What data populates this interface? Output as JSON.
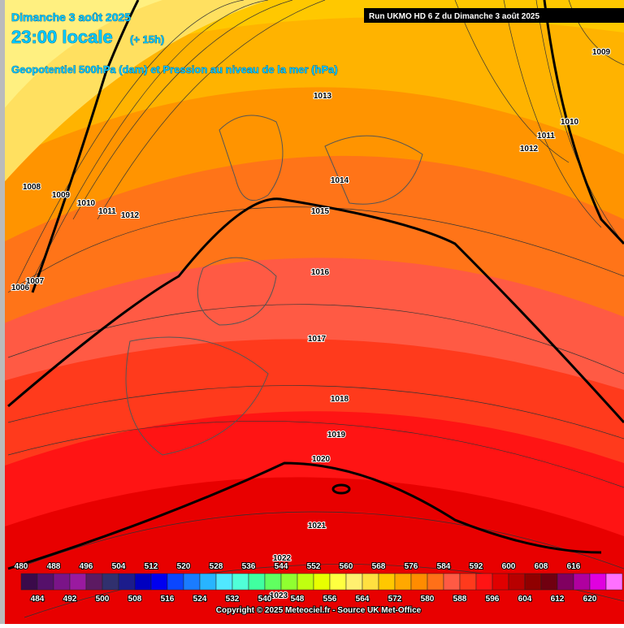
{
  "header": {
    "date": "Dimanche 3 août 2025",
    "time": "23:00 locale",
    "lead": "(+ 15h)",
    "title": "Geopotentiel 500hPa (dam) et Pression au niveau de la mer (hPa)",
    "run": "Run UKMO HD 6 Z du Dimanche 3 août 2025"
  },
  "isobar_labels": [
    "1009",
    "1013",
    "1010",
    "1011",
    "1012",
    "1014",
    "1008",
    "1009",
    "1010",
    "1011",
    "1012",
    "1015",
    "1007",
    "1006",
    "1016",
    "1017",
    "1018",
    "1019",
    "1020",
    "1021",
    "1022",
    "1023"
  ],
  "colorbar": {
    "top_labels": [
      "480",
      "488",
      "496",
      "504",
      "512",
      "520",
      "528",
      "536",
      "544",
      "552",
      "560",
      "568",
      "576",
      "584",
      "592",
      "600",
      "608",
      "616"
    ],
    "bottom_labels": [
      "484",
      "492",
      "500",
      "508",
      "516",
      "524",
      "532",
      "540",
      "548",
      "556",
      "564",
      "572",
      "580",
      "588",
      "596",
      "604",
      "612",
      "620"
    ]
  },
  "footer": "Copyright © 2025 Meteociel.fr - Source UK Met-Office"
}
